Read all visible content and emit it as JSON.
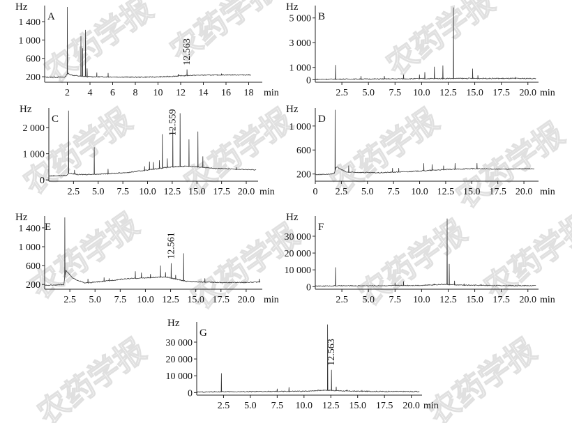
{
  "figure": {
    "watermark_text": "农药学报",
    "unit_label": "Hz"
  },
  "chart_data": [
    {
      "panel": "A",
      "type": "line",
      "xlabel": "min",
      "xlim": [
        0,
        19.2
      ],
      "xticks": [
        2,
        4,
        6,
        8,
        10,
        12,
        14,
        16,
        18
      ],
      "xtick_labels": [
        "2",
        "4",
        "6",
        "8",
        "10",
        "12",
        "14",
        "16",
        "18"
      ],
      "ylim": [
        80,
        1750
      ],
      "yticks": [
        200,
        600,
        1000,
        1400
      ],
      "ytick_labels": [
        "200",
        "600",
        "1 000",
        "1 400"
      ],
      "baseline_points": [
        [
          0,
          190
        ],
        [
          1.8,
          190
        ],
        [
          2.0,
          270
        ],
        [
          2.5,
          230
        ],
        [
          3.2,
          210
        ],
        [
          4,
          200
        ],
        [
          6,
          195
        ],
        [
          8,
          190
        ],
        [
          10,
          195
        ],
        [
          11,
          205
        ],
        [
          12,
          220
        ],
        [
          13,
          230
        ],
        [
          14,
          235
        ],
        [
          16,
          240
        ],
        [
          18.2,
          240
        ]
      ],
      "peaks": [
        [
          2.0,
          1720
        ],
        [
          3.2,
          1080
        ],
        [
          3.35,
          820
        ],
        [
          3.6,
          1220
        ],
        [
          3.75,
          380
        ],
        [
          4.6,
          290
        ],
        [
          5.6,
          280
        ],
        [
          11.8,
          260
        ],
        [
          12.563,
          360
        ],
        [
          15.6,
          270
        ]
      ],
      "annotation": {
        "text": "12.563",
        "x": 12.563
      }
    },
    {
      "panel": "B",
      "type": "line",
      "xlabel": "min",
      "xlim": [
        0,
        21
      ],
      "xticks": [
        2.5,
        5,
        7.5,
        10,
        12.5,
        15,
        17.5,
        20
      ],
      "xtick_labels": [
        "2.5",
        "5.0",
        "7.5",
        "10.0",
        "12.5",
        "15.0",
        "17.5",
        "20.0"
      ],
      "ylim": [
        -200,
        6000
      ],
      "yticks": [
        0,
        1000,
        3000,
        5000
      ],
      "ytick_labels": [
        "0",
        "1 000",
        "3 000",
        "5 000"
      ],
      "baseline_points": [
        [
          0,
          30
        ],
        [
          2,
          50
        ],
        [
          5,
          60
        ],
        [
          10,
          90
        ],
        [
          13,
          110
        ],
        [
          16,
          110
        ],
        [
          20.8,
          100
        ]
      ],
      "peaks": [
        [
          1.9,
          1200
        ],
        [
          4.3,
          300
        ],
        [
          6.5,
          300
        ],
        [
          8.3,
          420
        ],
        [
          9.8,
          420
        ],
        [
          10.3,
          620
        ],
        [
          11.2,
          1050
        ],
        [
          12.0,
          1150
        ],
        [
          13.0,
          5850
        ],
        [
          14.8,
          900
        ],
        [
          15.3,
          350
        ],
        [
          18.8,
          220
        ]
      ]
    },
    {
      "panel": "C",
      "type": "line",
      "xlabel": "min",
      "xlim": [
        0,
        21.2
      ],
      "xticks": [
        2.5,
        5,
        7.5,
        10,
        12.5,
        15,
        17.5,
        20
      ],
      "xtick_labels": [
        "2.5",
        "5.0",
        "7.5",
        "10.0",
        "12.5",
        "15.0",
        "17.5",
        "20.0"
      ],
      "ylim": [
        -50,
        2750
      ],
      "yticks": [
        0,
        1000,
        2000
      ],
      "ytick_labels": [
        "0",
        "1 000",
        "2 000"
      ],
      "baseline_points": [
        [
          0,
          150
        ],
        [
          1.8,
          170
        ],
        [
          2.0,
          260
        ],
        [
          3,
          200
        ],
        [
          5,
          220
        ],
        [
          8,
          280
        ],
        [
          10,
          380
        ],
        [
          12,
          480
        ],
        [
          14,
          530
        ],
        [
          17,
          440
        ],
        [
          21,
          380
        ]
      ],
      "peaks": [
        [
          2.0,
          2650
        ],
        [
          2.6,
          380
        ],
        [
          4.6,
          1250
        ],
        [
          6.0,
          420
        ],
        [
          9.7,
          520
        ],
        [
          10.2,
          700
        ],
        [
          10.6,
          680
        ],
        [
          11.2,
          750
        ],
        [
          11.5,
          1750
        ],
        [
          12.0,
          820
        ],
        [
          12.559,
          1950
        ],
        [
          13.3,
          2550
        ],
        [
          14.2,
          1550
        ],
        [
          15.1,
          1850
        ],
        [
          15.6,
          900
        ],
        [
          19.0,
          480
        ]
      ],
      "annotation": {
        "text": "12.559",
        "x": 12.559
      }
    },
    {
      "panel": "D",
      "type": "line",
      "xlabel": "min",
      "xlim": [
        0,
        21.4
      ],
      "xticks": [
        0,
        2.5,
        5,
        7.5,
        10,
        12.5,
        15,
        17.5,
        20
      ],
      "xtick_labels": [
        "0",
        "2.5",
        "5.0",
        "7.5",
        "10.0",
        "12.5",
        "15.0",
        "17.5",
        "20.0"
      ],
      "ylim": [
        80,
        1300
      ],
      "yticks": [
        200,
        600,
        1000
      ],
      "ytick_labels": [
        "200",
        "600",
        "1 000"
      ],
      "baseline_points": [
        [
          0,
          190
        ],
        [
          1.8,
          200
        ],
        [
          2.0,
          320
        ],
        [
          3,
          230
        ],
        [
          6,
          220
        ],
        [
          9,
          240
        ],
        [
          12,
          270
        ],
        [
          15,
          290
        ],
        [
          18,
          280
        ],
        [
          21,
          290
        ]
      ],
      "peaks": [
        [
          1.9,
          1270
        ],
        [
          3.2,
          340
        ],
        [
          7.4,
          300
        ],
        [
          8.0,
          300
        ],
        [
          10.4,
          380
        ],
        [
          11.2,
          360
        ],
        [
          12.3,
          340
        ],
        [
          13.4,
          380
        ],
        [
          15.5,
          380
        ],
        [
          20.5,
          300
        ]
      ]
    },
    {
      "panel": "E",
      "type": "line",
      "xlabel": "min",
      "xlim": [
        0,
        21.6
      ],
      "xticks": [
        2.5,
        5,
        7.5,
        10,
        12.5,
        15,
        17.5,
        20
      ],
      "xtick_labels": [
        "2.5",
        "5.0",
        "7.5",
        "10.0",
        "12.5",
        "15.0",
        "17.5",
        "20.0"
      ],
      "ylim": [
        100,
        1650
      ],
      "yticks": [
        200,
        600,
        1000,
        1400
      ],
      "ytick_labels": [
        "200",
        "600",
        "1 000",
        "1 400"
      ],
      "baseline_points": [
        [
          0,
          180
        ],
        [
          1.9,
          200
        ],
        [
          2.1,
          500
        ],
        [
          2.8,
          330
        ],
        [
          4,
          230
        ],
        [
          6,
          270
        ],
        [
          8,
          320
        ],
        [
          10,
          340
        ],
        [
          12,
          360
        ],
        [
          14,
          270
        ],
        [
          16,
          250
        ],
        [
          18,
          240
        ],
        [
          21.4,
          250
        ]
      ],
      "peaks": [
        [
          2.0,
          1620
        ],
        [
          4.3,
          320
        ],
        [
          5.9,
          350
        ],
        [
          6.4,
          330
        ],
        [
          9.0,
          480
        ],
        [
          9.6,
          450
        ],
        [
          10.5,
          420
        ],
        [
          11.5,
          600
        ],
        [
          12.0,
          460
        ],
        [
          12.561,
          650
        ],
        [
          13.0,
          400
        ],
        [
          13.8,
          860
        ],
        [
          15.9,
          330
        ],
        [
          21.3,
          320
        ]
      ],
      "annotation": {
        "text": "12.561",
        "x": 12.561
      }
    },
    {
      "panel": "F",
      "type": "line",
      "xlabel": "min",
      "xlim": [
        0,
        21
      ],
      "xticks": [
        2.5,
        5,
        7.5,
        10,
        12.5,
        15,
        17.5,
        20
      ],
      "xtick_labels": [
        "2.5",
        "5.0",
        "7.5",
        "10.0",
        "12.5",
        "15.0",
        "17.5",
        "20.0"
      ],
      "ylim": [
        -1500,
        42000
      ],
      "yticks": [
        0,
        10000,
        20000,
        30000
      ],
      "ytick_labels": [
        "0",
        "10 000",
        "20 000",
        "30 000"
      ],
      "baseline_points": [
        [
          0,
          300
        ],
        [
          2,
          500
        ],
        [
          6,
          600
        ],
        [
          10,
          800
        ],
        [
          12,
          1400
        ],
        [
          14,
          900
        ],
        [
          17,
          700
        ],
        [
          20.8,
          600
        ]
      ],
      "peaks": [
        [
          1.9,
          11500
        ],
        [
          7.5,
          2300
        ],
        [
          8.3,
          3200
        ],
        [
          11.2,
          1700
        ],
        [
          12.4,
          40500
        ],
        [
          12.6,
          13500
        ],
        [
          13.1,
          3500
        ],
        [
          14.0,
          1800
        ],
        [
          15.6,
          1500
        ]
      ]
    },
    {
      "panel": "G",
      "type": "line",
      "xlabel": "min",
      "xlim": [
        0,
        21
      ],
      "xticks": [
        2.5,
        5,
        7.5,
        10,
        12.5,
        15,
        17.5,
        20
      ],
      "xtick_labels": [
        "2.5",
        "5.0",
        "7.5",
        "10.0",
        "12.5",
        "15.0",
        "17.5",
        "20.0"
      ],
      "ylim": [
        -1500,
        42000
      ],
      "yticks": [
        0,
        10000,
        20000,
        30000
      ],
      "ytick_labels": [
        "0",
        "10 000",
        "20 000",
        "30 000"
      ],
      "baseline_points": [
        [
          0,
          300
        ],
        [
          2,
          500
        ],
        [
          6,
          600
        ],
        [
          10,
          800
        ],
        [
          12,
          1500
        ],
        [
          14,
          900
        ],
        [
          17,
          700
        ],
        [
          20.8,
          600
        ]
      ],
      "peaks": [
        [
          2.3,
          11500
        ],
        [
          7.5,
          2300
        ],
        [
          8.6,
          3200
        ],
        [
          11.3,
          1700
        ],
        [
          12.2,
          40500
        ],
        [
          12.563,
          13500
        ],
        [
          13.0,
          3500
        ],
        [
          14.0,
          1800
        ],
        [
          15.4,
          1500
        ]
      ],
      "annotation": {
        "text": "12.563",
        "x": 12.563
      }
    }
  ]
}
